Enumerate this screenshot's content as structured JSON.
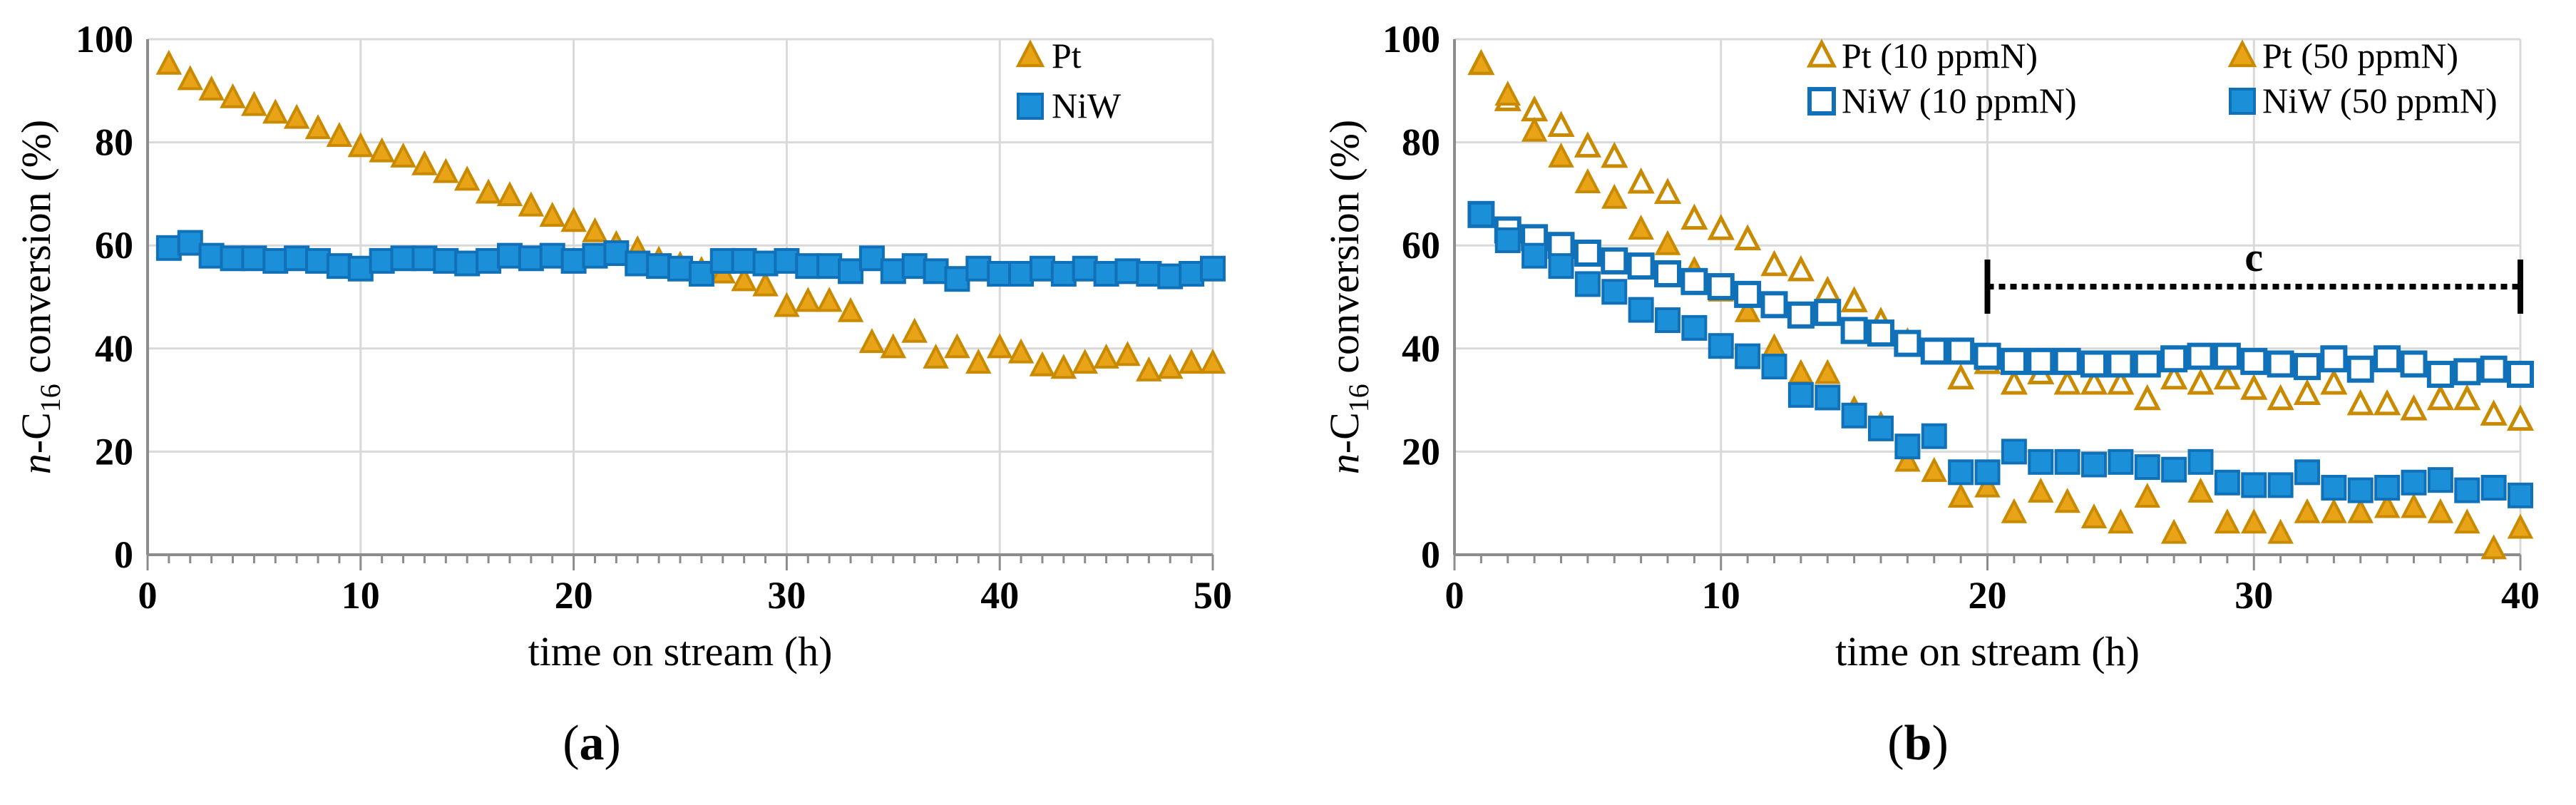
{
  "colors": {
    "pt_fill": "#E8A317",
    "pt_stroke": "#C98A00",
    "niw_fill": "#1B8FD8",
    "niw_stroke": "#1070B8",
    "hollow_fill": "#FFFFFF"
  },
  "chart_data": [
    {
      "type": "scatter",
      "panel_label_open": "(",
      "panel_letter": "a",
      "panel_label_close": ")",
      "xlabel": "time on stream (h)",
      "ylabel_prefix": "n",
      "ylabel_mid": "-C",
      "ylabel_sub": "16",
      "ylabel_suffix": " conversion (%)",
      "xlim": [
        0,
        50
      ],
      "ylim": [
        0,
        100
      ],
      "xticks": [
        "0",
        "10",
        "20",
        "30",
        "40",
        "50"
      ],
      "yticks": [
        "0",
        "20",
        "40",
        "60",
        "80",
        "100"
      ],
      "series": [
        {
          "name": "Pt",
          "marker": "triangle",
          "filled": true,
          "x": [
            1,
            2,
            3,
            4,
            5,
            6,
            7,
            8,
            9,
            10,
            11,
            12,
            13,
            14,
            15,
            16,
            17,
            18,
            19,
            20,
            21,
            22,
            23,
            24,
            25,
            26,
            27,
            28,
            29,
            30,
            31,
            32,
            33,
            34,
            35,
            36,
            37,
            38,
            39,
            40,
            41,
            42,
            43,
            44,
            45,
            46,
            47,
            48,
            49,
            50
          ],
          "y": [
            95,
            92,
            90,
            88.5,
            87,
            85.5,
            84.5,
            82.5,
            81,
            79,
            78,
            77,
            75.5,
            74,
            72.5,
            70,
            69.5,
            67.5,
            65.5,
            64.5,
            62.5,
            60,
            59,
            57,
            56,
            55,
            54.5,
            53,
            52,
            48,
            49,
            49,
            47,
            41,
            40,
            43,
            38,
            40,
            37,
            40,
            39,
            36.5,
            36,
            37,
            38,
            38.5,
            35.5,
            36,
            37,
            37
          ]
        },
        {
          "name": "NiW",
          "marker": "square",
          "filled": true,
          "x": [
            1,
            2,
            3,
            4,
            5,
            6,
            7,
            8,
            9,
            10,
            11,
            12,
            13,
            14,
            15,
            16,
            17,
            18,
            19,
            20,
            21,
            22,
            23,
            24,
            25,
            26,
            27,
            28,
            29,
            30,
            31,
            32,
            33,
            34,
            35,
            36,
            37,
            38,
            39,
            40,
            41,
            42,
            43,
            44,
            45,
            46,
            47,
            48,
            49,
            50
          ],
          "y": [
            59.5,
            60.5,
            58,
            57.5,
            57.5,
            57,
            57.5,
            57,
            56,
            55.5,
            57,
            57.5,
            57.5,
            57,
            56.5,
            57,
            58,
            57.5,
            58,
            57,
            58,
            58.5,
            56.5,
            56,
            55.5,
            54.5,
            57,
            57,
            56.5,
            57,
            56,
            56,
            55,
            57.5,
            55,
            56,
            55,
            53.5,
            55.5,
            54.5,
            54.5,
            55.5,
            54.5,
            55.5,
            54.5,
            55,
            54.5,
            54,
            54.5,
            55.5
          ]
        }
      ]
    },
    {
      "type": "scatter",
      "panel_label_open": "(",
      "panel_letter": "b",
      "panel_label_close": ")",
      "xlabel": "time on stream (h)",
      "ylabel_prefix": "n",
      "ylabel_mid": "-C",
      "ylabel_sub": "16",
      "ylabel_suffix": " conversion (%)",
      "xlim": [
        0,
        40
      ],
      "ylim": [
        0,
        100
      ],
      "xticks": [
        "0",
        "10",
        "20",
        "30",
        "40"
      ],
      "yticks": [
        "0",
        "20",
        "40",
        "60",
        "80",
        "100"
      ],
      "annotation": {
        "text": "c",
        "x_start": 20,
        "x_end": 40,
        "y": 52
      },
      "series": [
        {
          "name": "Pt (10 ppmN)",
          "marker": "triangle",
          "filled": false,
          "x": [
            1,
            2,
            3,
            4,
            5,
            6,
            7,
            8,
            9,
            10,
            11,
            12,
            13,
            14,
            15,
            16,
            17,
            18,
            19,
            20,
            21,
            22,
            23,
            24,
            25,
            26,
            27,
            28,
            29,
            30,
            31,
            32,
            33,
            34,
            35,
            36,
            37,
            38,
            39,
            40
          ],
          "y": [
            95,
            88,
            86,
            83,
            79,
            77,
            72,
            70,
            65,
            63,
            61,
            56,
            55,
            51,
            49,
            45,
            41,
            39,
            34,
            37,
            33,
            35,
            33,
            33,
            33,
            30,
            34,
            33,
            34,
            32,
            30,
            31,
            33,
            29,
            29,
            28,
            30,
            30,
            27,
            26
          ]
        },
        {
          "name": "Pt (50 ppmN)",
          "marker": "triangle",
          "filled": true,
          "x": [
            1,
            2,
            3,
            4,
            5,
            6,
            7,
            8,
            9,
            10,
            11,
            12,
            13,
            14,
            15,
            16,
            17,
            18,
            19,
            20,
            21,
            22,
            23,
            24,
            25,
            26,
            27,
            28,
            29,
            30,
            31,
            32,
            33,
            34,
            35,
            36,
            37,
            38,
            39,
            40
          ],
          "y": [
            95,
            89,
            82,
            77,
            72,
            69,
            63,
            60,
            55,
            51,
            47,
            40,
            35,
            35,
            28,
            25,
            18,
            16,
            11,
            13,
            8,
            12,
            10,
            7,
            6,
            11,
            4,
            12,
            6,
            6,
            4,
            8,
            8,
            8,
            9,
            9,
            8,
            6,
            1,
            5
          ]
        },
        {
          "name": "NiW (10 ppmN)",
          "marker": "square",
          "filled": false,
          "x": [
            1,
            2,
            3,
            4,
            5,
            6,
            7,
            8,
            9,
            10,
            11,
            12,
            13,
            14,
            15,
            16,
            17,
            18,
            19,
            20,
            21,
            22,
            23,
            24,
            25,
            26,
            27,
            28,
            29,
            30,
            31,
            32,
            33,
            34,
            35,
            36,
            37,
            38,
            39,
            40
          ],
          "y": [
            66,
            63,
            61.5,
            60,
            58.5,
            57,
            56,
            54.5,
            53,
            52,
            50.5,
            48.5,
            46.5,
            47,
            43.5,
            43,
            41,
            39.5,
            39.5,
            38.5,
            37.5,
            37.5,
            37.5,
            37,
            37,
            37,
            38,
            38.5,
            38.5,
            37.5,
            37,
            36.5,
            38,
            36,
            38,
            37,
            35,
            35.5,
            36,
            35
          ]
        },
        {
          "name": "NiW (50 ppmN)",
          "marker": "square",
          "filled": true,
          "x": [
            1,
            2,
            3,
            4,
            5,
            6,
            7,
            8,
            9,
            10,
            11,
            12,
            13,
            14,
            15,
            16,
            17,
            18,
            19,
            20,
            21,
            22,
            23,
            24,
            25,
            26,
            27,
            28,
            29,
            30,
            31,
            32,
            33,
            34,
            35,
            36,
            37,
            38,
            39,
            40
          ],
          "y": [
            66,
            61,
            58,
            56,
            52.5,
            51,
            47.5,
            45.5,
            44,
            40.5,
            38.5,
            36.5,
            31,
            30.5,
            27,
            24.5,
            21,
            23,
            16,
            16,
            20,
            18,
            18,
            17.5,
            18,
            17,
            16.5,
            18,
            14,
            13.5,
            13.5,
            16,
            13,
            12.5,
            13,
            14,
            14.5,
            12.5,
            13,
            11.5
          ]
        }
      ]
    }
  ]
}
